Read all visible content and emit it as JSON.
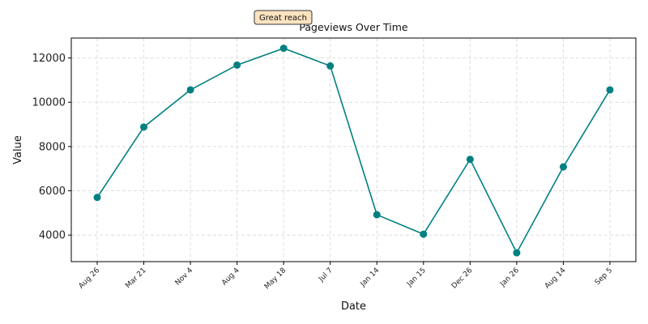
{
  "chart_data": {
    "type": "line",
    "title": "Pageviews Over Time",
    "xlabel": "Date",
    "ylabel": "Value",
    "categories": [
      "Aug 26",
      "Mar 21",
      "Nov 4",
      "Aug 4",
      "May 18",
      "Jul 7",
      "Jan 14",
      "Jan 15",
      "Dec 26",
      "Jan 26",
      "Aug 14",
      "Sep 5"
    ],
    "values": [
      5700,
      8880,
      10560,
      11680,
      12440,
      11640,
      4920,
      4040,
      7420,
      3200,
      7080,
      10560
    ],
    "ylim": [
      2800,
      12900
    ],
    "yticks": [
      4000,
      6000,
      8000,
      10000,
      12000
    ],
    "grid": true,
    "annotation": {
      "text": "Great reach"
    },
    "colors": {
      "line": "#008080",
      "annotation_fill": "#fbe3c0",
      "annotation_border": "#333333",
      "grid": "#dddddd"
    }
  }
}
